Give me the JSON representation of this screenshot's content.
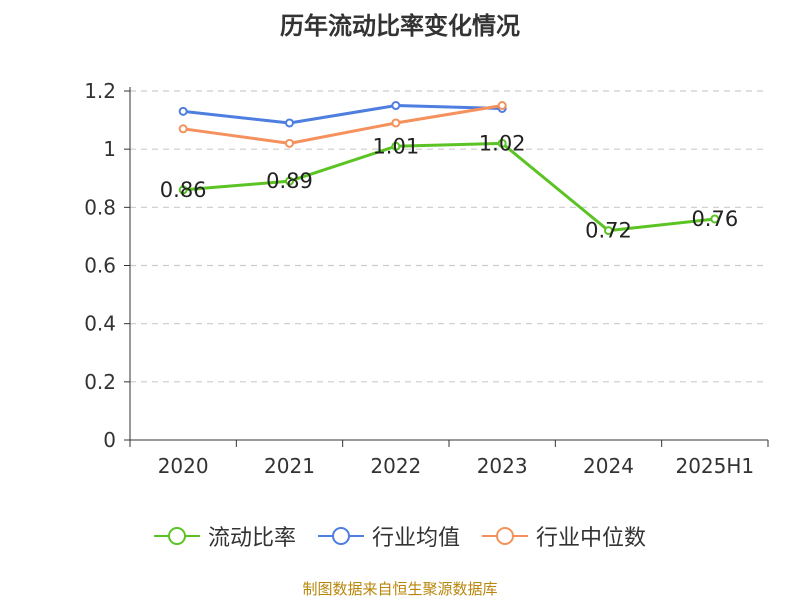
{
  "chart_data": {
    "type": "line",
    "title": "历年流动比率变化情况",
    "categories": [
      "2020",
      "2021",
      "2022",
      "2023",
      "2024",
      "2025H1"
    ],
    "ylim": [
      0,
      1.2
    ],
    "yticks": [
      "0",
      "0.2",
      "0.4",
      "0.6",
      "0.8",
      "1",
      "1.2"
    ],
    "grid": true,
    "legend_position": "bottom",
    "series": [
      {
        "name": "流动比率",
        "color": "#5cc324",
        "values": [
          0.86,
          0.89,
          1.01,
          1.02,
          0.72,
          0.76
        ],
        "labels": [
          "0.86",
          "0.89",
          "1.01",
          "1.02",
          "0.72",
          "0.76"
        ]
      },
      {
        "name": "行业均值",
        "color": "#4e7ee0",
        "values": [
          1.13,
          1.09,
          1.15,
          1.14,
          null,
          null
        ]
      },
      {
        "name": "行业中位数",
        "color": "#f4915d",
        "values": [
          1.07,
          1.02,
          1.09,
          1.15,
          null,
          null
        ]
      }
    ]
  },
  "footer": "制图数据来自恒生聚源数据库"
}
